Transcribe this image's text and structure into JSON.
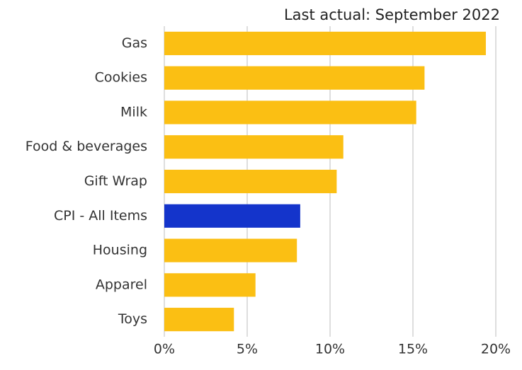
{
  "chart_data": {
    "type": "barh",
    "title": "Last actual: September 2022",
    "categories": [
      "Gas",
      "Cookies",
      "Milk",
      "Food & beverages",
      "Gift Wrap",
      "CPI - All Items",
      "Housing",
      "Apparel",
      "Toys"
    ],
    "values": [
      19.4,
      15.7,
      15.2,
      10.8,
      10.4,
      8.2,
      8.0,
      5.5,
      4.2
    ],
    "colors": [
      "#fbbf13",
      "#fbbf13",
      "#fbbf13",
      "#fbbf13",
      "#fbbf13",
      "#1434cb",
      "#fbbf13",
      "#fbbf13",
      "#fbbf13"
    ],
    "xlim": [
      0,
      20
    ],
    "xticks": [
      {
        "value": 0,
        "label": "0%"
      },
      {
        "value": 5,
        "label": "5%"
      },
      {
        "value": 10,
        "label": "10%"
      },
      {
        "value": 15,
        "label": "15%"
      },
      {
        "value": 20,
        "label": "20%"
      }
    ],
    "grid": true
  }
}
